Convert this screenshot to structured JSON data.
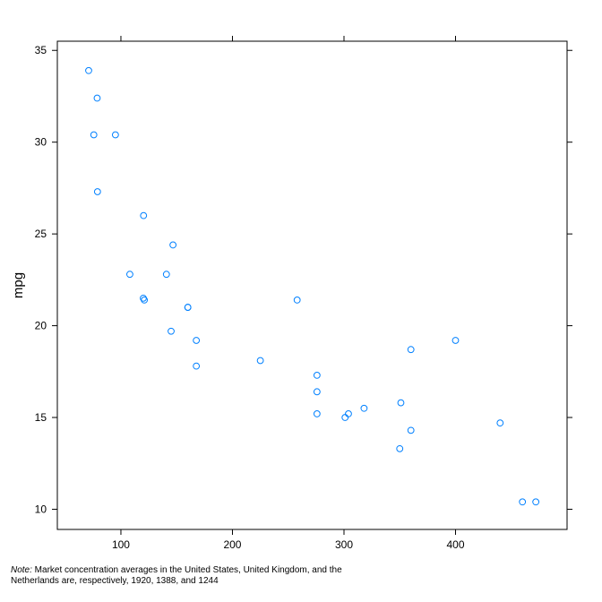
{
  "chart_data": {
    "type": "scatter",
    "title": "",
    "xlabel": "",
    "ylabel": "mpg",
    "xlim": [
      43,
      500
    ],
    "ylim": [
      8.9,
      35.5
    ],
    "x_ticks": [
      100,
      200,
      300,
      400
    ],
    "y_ticks": [
      10,
      15,
      20,
      25,
      30,
      35
    ],
    "grid": false,
    "marker": "open-circle",
    "point_color": "#0080ff",
    "series": [
      {
        "points": [
          {
            "x": 71.1,
            "y": 33.9
          },
          {
            "x": 78.7,
            "y": 32.4
          },
          {
            "x": 75.7,
            "y": 30.4
          },
          {
            "x": 95.1,
            "y": 30.4
          },
          {
            "x": 79.0,
            "y": 27.3
          },
          {
            "x": 120.3,
            "y": 26.0
          },
          {
            "x": 146.7,
            "y": 24.4
          },
          {
            "x": 108.0,
            "y": 22.8
          },
          {
            "x": 140.8,
            "y": 22.8
          },
          {
            "x": 120.1,
            "y": 21.5
          },
          {
            "x": 121.0,
            "y": 21.4
          },
          {
            "x": 160.0,
            "y": 21.0
          },
          {
            "x": 160.0,
            "y": 21.0
          },
          {
            "x": 258.0,
            "y": 21.4
          },
          {
            "x": 145.0,
            "y": 19.7
          },
          {
            "x": 167.6,
            "y": 19.2
          },
          {
            "x": 167.6,
            "y": 17.8
          },
          {
            "x": 225.0,
            "y": 18.1
          },
          {
            "x": 275.8,
            "y": 17.3
          },
          {
            "x": 275.8,
            "y": 16.4
          },
          {
            "x": 275.8,
            "y": 15.2
          },
          {
            "x": 304.0,
            "y": 15.2
          },
          {
            "x": 301.0,
            "y": 15.0
          },
          {
            "x": 318.0,
            "y": 15.5
          },
          {
            "x": 351.0,
            "y": 15.8
          },
          {
            "x": 350.0,
            "y": 13.3
          },
          {
            "x": 360.0,
            "y": 14.3
          },
          {
            "x": 360.0,
            "y": 18.7
          },
          {
            "x": 400.0,
            "y": 19.2
          },
          {
            "x": 440.0,
            "y": 14.7
          },
          {
            "x": 460.0,
            "y": 10.4
          },
          {
            "x": 472.0,
            "y": 10.4
          }
        ]
      }
    ]
  },
  "note": {
    "label": "Note:",
    "text": " Market concentration averages in the United States, United Kingdom, and the Netherlands are, respectively, 1920, 1388, and 1244"
  }
}
